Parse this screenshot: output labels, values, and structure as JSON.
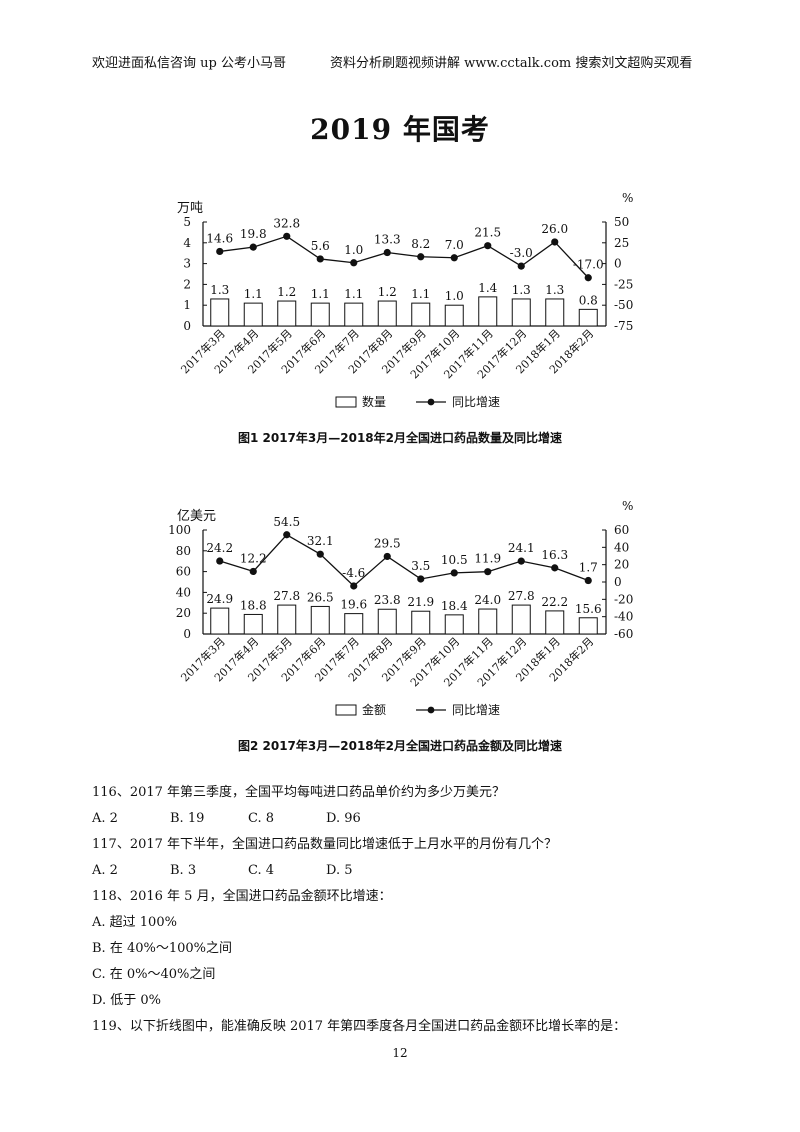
{
  "header": {
    "left": "欢迎进面私信咨询 up 公考小马哥",
    "right": "资料分析刷题视频讲解 www.cctalk.com 搜索刘文超购买观看"
  },
  "title": "2019 年国考",
  "chart_data": [
    {
      "type": "bar",
      "caption": "图1   2017年3月—2018年2月全国进口药品数量及同比增速",
      "categories": [
        "2017年3月",
        "2017年4月",
        "2017年5月",
        "2017年6月",
        "2017年7月",
        "2017年8月",
        "2017年9月",
        "2017年10月",
        "2017年11月",
        "2017年12月",
        "2018年1月",
        "2018年2月"
      ],
      "ylabel_left": "万吨",
      "ylabel_right": "%",
      "ylim_left": [
        0,
        5
      ],
      "yticks_left": [
        "0",
        "1",
        "2",
        "3",
        "4",
        "5"
      ],
      "ylim_right": [
        -75,
        50
      ],
      "yticks_right": [
        "-75",
        "-50",
        "-25",
        "0",
        "25",
        "50"
      ],
      "series": [
        {
          "name": "数量",
          "kind": "bar",
          "axis": "left",
          "values": [
            1.3,
            1.1,
            1.2,
            1.1,
            1.1,
            1.2,
            1.1,
            1.0,
            1.4,
            1.3,
            1.3,
            0.8
          ],
          "labels": [
            "1.3",
            "1.1",
            "1.2",
            "1.1",
            "1.1",
            "1.2",
            "1.1",
            "1.0",
            "1.4",
            "1.3",
            "1.3",
            "0.8"
          ]
        },
        {
          "name": "同比增速",
          "kind": "line",
          "axis": "right",
          "values": [
            14.6,
            19.8,
            32.8,
            5.6,
            1.0,
            13.3,
            8.2,
            7.0,
            21.5,
            -3.0,
            26.0,
            -17.0
          ],
          "labels": [
            "14.6",
            "19.8",
            "32.8",
            "5.6",
            "1.0",
            "13.3",
            "8.2",
            "7.0",
            "21.5",
            "-3.0",
            "26.0",
            "-17.0"
          ]
        }
      ],
      "legend": [
        "数量",
        "同比增速"
      ],
      "legend_position": "bottom"
    },
    {
      "type": "bar",
      "caption": "图2   2017年3月—2018年2月全国进口药品金额及同比增速",
      "categories": [
        "2017年3月",
        "2017年4月",
        "2017年5月",
        "2017年6月",
        "2017年7月",
        "2017年8月",
        "2017年9月",
        "2017年10月",
        "2017年11月",
        "2017年12月",
        "2018年1月",
        "2018年2月"
      ],
      "ylabel_left": "亿美元",
      "ylabel_right": "%",
      "ylim_left": [
        0,
        100
      ],
      "yticks_left": [
        "0",
        "20",
        "40",
        "60",
        "80",
        "100"
      ],
      "ylim_right": [
        -60,
        60
      ],
      "yticks_right": [
        "-60",
        "-40",
        "-20",
        "0",
        "20",
        "40",
        "60"
      ],
      "series": [
        {
          "name": "金额",
          "kind": "bar",
          "axis": "left",
          "values": [
            24.9,
            18.8,
            27.8,
            26.5,
            19.6,
            23.8,
            21.9,
            18.4,
            24.0,
            27.8,
            22.2,
            15.6
          ],
          "labels": [
            "24.9",
            "18.8",
            "27.8",
            "26.5",
            "19.6",
            "23.8",
            "21.9",
            "18.4",
            "24.0",
            "27.8",
            "22.2",
            "15.6"
          ]
        },
        {
          "name": "同比增速",
          "kind": "line",
          "axis": "right",
          "values": [
            24.2,
            12.2,
            54.5,
            32.1,
            -4.6,
            29.5,
            3.5,
            10.5,
            11.9,
            24.1,
            16.3,
            1.7
          ],
          "labels": [
            "24.2",
            "12.2",
            "54.5",
            "32.1",
            "-4.6",
            "29.5",
            "3.5",
            "10.5",
            "11.9",
            "24.1",
            "16.3",
            "1.7"
          ]
        }
      ],
      "legend": [
        "金额",
        "同比增速"
      ],
      "legend_position": "bottom"
    }
  ],
  "questions": {
    "q116": "116、2017 年第三季度，全国平均每吨进口药品单价约为多少万美元？",
    "q116_options": [
      "A. 2",
      "B. 19",
      "C. 8",
      "D. 96"
    ],
    "q117": "117、2017 年下半年，全国进口药品数量同比增速低于上月水平的月份有几个？",
    "q117_options": [
      "A. 2",
      "B. 3",
      "C. 4",
      "D. 5"
    ],
    "q118": "118、2016 年 5 月，全国进口药品金额环比增速：",
    "q118_options": [
      "A.  超过 100%",
      "B.  在 40%～100%之间",
      "C.  在 0%～40%之间",
      "D.  低于 0%"
    ],
    "q119": "119、以下折线图中，能准确反映 2017 年第四季度各月全国进口药品金额环比增长率的是："
  },
  "page_number": "12"
}
